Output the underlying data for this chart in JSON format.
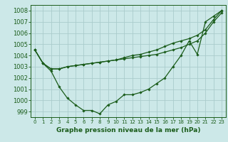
{
  "title": "Graphe pression niveau de la mer (hPa)",
  "bg_color": "#cce8e8",
  "grid_color": "#aacccc",
  "line_color": "#1a5c1a",
  "xlim": [
    -0.5,
    23.5
  ],
  "ylim": [
    998.5,
    1008.5
  ],
  "yticks": [
    999,
    1000,
    1001,
    1002,
    1003,
    1004,
    1005,
    1006,
    1007,
    1008
  ],
  "xticks": [
    0,
    1,
    2,
    3,
    4,
    5,
    6,
    7,
    8,
    9,
    10,
    11,
    12,
    13,
    14,
    15,
    16,
    17,
    18,
    19,
    20,
    21,
    22,
    23
  ],
  "series1": [
    1004.5,
    1003.3,
    1002.6,
    1001.2,
    1000.2,
    999.6,
    999.1,
    999.1,
    998.8,
    999.6,
    999.9,
    1000.5,
    1000.5,
    1000.7,
    1001.0,
    1001.5,
    1002.0,
    1003.0,
    1004.0,
    1005.3,
    1004.1,
    1007.0,
    1007.5,
    1008.0
  ],
  "series2": [
    1004.5,
    1003.3,
    1002.8,
    1002.8,
    1003.0,
    1003.1,
    1003.2,
    1003.3,
    1003.4,
    1003.5,
    1003.6,
    1003.7,
    1003.8,
    1003.9,
    1004.0,
    1004.1,
    1004.3,
    1004.5,
    1004.7,
    1005.0,
    1005.3,
    1006.0,
    1007.0,
    1007.8
  ],
  "series3": [
    1004.5,
    1003.3,
    1002.8,
    1002.8,
    1003.0,
    1003.1,
    1003.2,
    1003.3,
    1003.4,
    1003.5,
    1003.6,
    1003.8,
    1004.0,
    1004.1,
    1004.3,
    1004.5,
    1004.8,
    1005.1,
    1005.3,
    1005.5,
    1005.8,
    1006.3,
    1007.2,
    1008.0
  ],
  "tick_fontsize": 6,
  "label_fontsize": 6.5,
  "marker_size": 1.8,
  "line_width": 0.9
}
